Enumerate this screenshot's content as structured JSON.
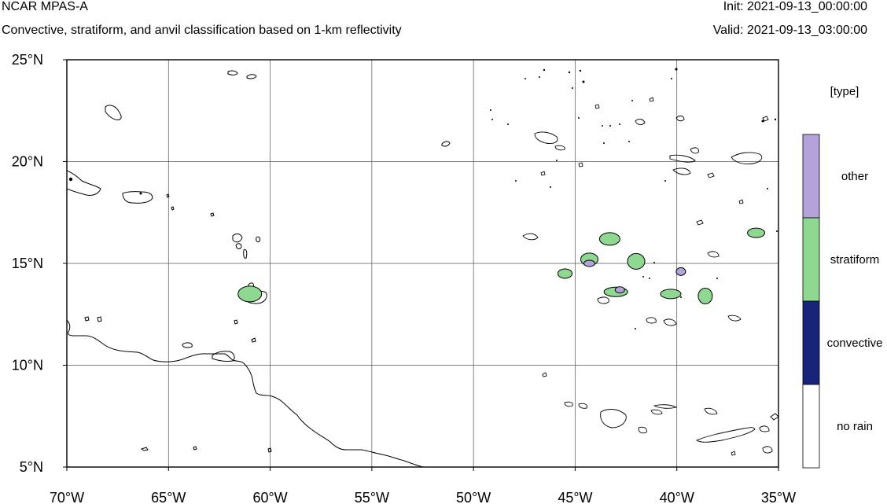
{
  "header": {
    "title": "NCAR MPAS-A",
    "subtitle": "Convective, stratiform, and anvil classification based on 1-km reflectivity",
    "init": "Init: 2021-09-13_00:00:00",
    "valid": "Valid: 2021-09-13_03:00:00"
  },
  "map": {
    "projection": "lat-lon",
    "lon_range": [
      -70,
      -35
    ],
    "lat_range": [
      5,
      25
    ],
    "grid": true,
    "grid_color": "#000000",
    "coastline_color": "#000000"
  },
  "axes": {
    "x_ticks": [
      {
        "value": -70,
        "label": "70°W"
      },
      {
        "value": -65,
        "label": "65°W"
      },
      {
        "value": -60,
        "label": "60°W"
      },
      {
        "value": -55,
        "label": "55°W"
      },
      {
        "value": -50,
        "label": "50°W"
      },
      {
        "value": -45,
        "label": "45°W"
      },
      {
        "value": -40,
        "label": "40°W"
      },
      {
        "value": -35,
        "label": "35°W"
      }
    ],
    "y_ticks": [
      {
        "value": 25,
        "label": "25°N"
      },
      {
        "value": 20,
        "label": "20°N"
      },
      {
        "value": 15,
        "label": "15°N"
      },
      {
        "value": 10,
        "label": "10°N"
      },
      {
        "value": 5,
        "label": "5°N"
      }
    ]
  },
  "legend": {
    "title": "[type]",
    "entries": [
      {
        "label": "other",
        "color": "#b3a3da"
      },
      {
        "label": "stratiform",
        "color": "#8ed892"
      },
      {
        "label": "convective",
        "color": "#18247a"
      },
      {
        "label": "no rain",
        "color": "#ffffff"
      }
    ]
  },
  "colors": {
    "other": "#b3a3da",
    "stratiform": "#8ed892",
    "convective": "#18247a",
    "no_rain": "#ffffff"
  },
  "precip_cells": [
    {
      "type": "stratiform",
      "lon": -45.5,
      "lat": 14.5
    },
    {
      "type": "stratiform",
      "lon": -44.3,
      "lat": 15.2
    },
    {
      "type": "other",
      "lon": -44.3,
      "lat": 15.0
    },
    {
      "type": "stratiform",
      "lon": -43.0,
      "lat": 13.6
    },
    {
      "type": "other",
      "lon": -42.8,
      "lat": 13.7
    },
    {
      "type": "stratiform",
      "lon": -42.0,
      "lat": 15.1
    },
    {
      "type": "stratiform",
      "lon": -40.3,
      "lat": 13.5
    },
    {
      "type": "other",
      "lon": -39.8,
      "lat": 14.6
    },
    {
      "type": "stratiform",
      "lon": -38.6,
      "lat": 13.4
    },
    {
      "type": "stratiform",
      "lon": -36.1,
      "lat": 16.5
    },
    {
      "type": "stratiform",
      "lon": -43.3,
      "lat": 16.2
    },
    {
      "type": "stratiform",
      "lon": -61.0,
      "lat": 13.5
    }
  ]
}
